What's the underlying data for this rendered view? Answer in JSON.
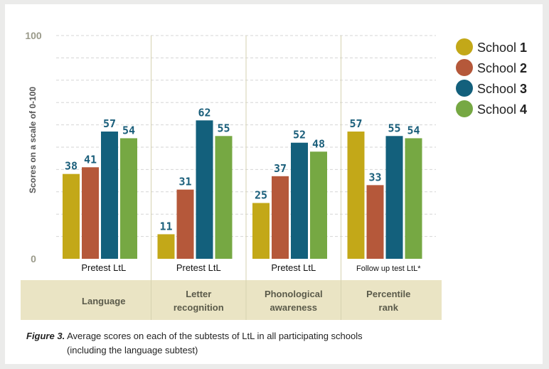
{
  "chart_data": {
    "type": "bar",
    "ylabel": "Scores on a scale of 0-100",
    "ylim": [
      0,
      100
    ],
    "yticks": [
      "0",
      "100"
    ],
    "grid": true,
    "legend_position": "right",
    "series": [
      {
        "name_prefix": "School",
        "name_number": "1",
        "color": "#c3a818"
      },
      {
        "name_prefix": "School",
        "name_number": "2",
        "color": "#b5583a"
      },
      {
        "name_prefix": "School",
        "name_number": "3",
        "color": "#13607c"
      },
      {
        "name_prefix": "School",
        "name_number": "4",
        "color": "#76a843"
      }
    ],
    "groups": [
      {
        "test": "Pretest LtL",
        "subtest": "Language",
        "values": [
          38,
          41,
          57,
          54
        ]
      },
      {
        "test": "Pretest LtL",
        "subtest": "Letter recognition",
        "values": [
          11,
          31,
          62,
          55
        ]
      },
      {
        "test": "Pretest LtL",
        "subtest": "Phonological awareness",
        "values": [
          25,
          37,
          52,
          48
        ]
      },
      {
        "test": "Follow up test LtL*",
        "subtest": "Percentile rank",
        "values": [
          57,
          33,
          55,
          54
        ]
      }
    ],
    "colors": {
      "value_label": "#1b5f7b",
      "axis_text": "#9a9a8a",
      "band": "#eae4c4",
      "divider": "#d6d2b0",
      "grid": "#d5d5d5"
    }
  },
  "caption": {
    "label": "Figure 3.",
    "text_line1": "Average scores on each of the subtests of LtL in all participating schools",
    "text_line2": "(including the language subtest)"
  }
}
